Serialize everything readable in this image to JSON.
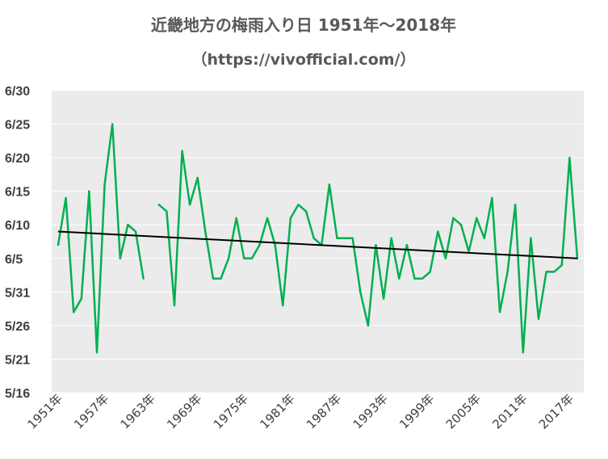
{
  "chart_data": {
    "type": "line",
    "title": "近畿地方の梅雨入り日 1951年～2018年",
    "subtitle": "（https://vivofficial.com/）",
    "xlabel": "",
    "ylabel": "",
    "y_unit": "day of year (Jan 1 = 1); tick labels shown as M/D",
    "yticks": [
      {
        "value": 136,
        "label": "5/16"
      },
      {
        "value": 141,
        "label": "5/21"
      },
      {
        "value": 146,
        "label": "5/26"
      },
      {
        "value": 151,
        "label": "5/31"
      },
      {
        "value": 156,
        "label": "6/5"
      },
      {
        "value": 161,
        "label": "6/10"
      },
      {
        "value": 166,
        "label": "6/15"
      },
      {
        "value": 171,
        "label": "6/20"
      },
      {
        "value": 176,
        "label": "6/25"
      },
      {
        "value": 181,
        "label": "6/30"
      }
    ],
    "ylim": [
      136,
      181
    ],
    "xlim": [
      1951,
      2018
    ],
    "xticks": [
      {
        "value": 1951,
        "label": "1951年"
      },
      {
        "value": 1957,
        "label": "1957年"
      },
      {
        "value": 1963,
        "label": "1963年"
      },
      {
        "value": 1969,
        "label": "1969年"
      },
      {
        "value": 1975,
        "label": "1975年"
      },
      {
        "value": 1981,
        "label": "1981年"
      },
      {
        "value": 1987,
        "label": "1987年"
      },
      {
        "value": 1993,
        "label": "1993年"
      },
      {
        "value": 1999,
        "label": "1999年"
      },
      {
        "value": 2005,
        "label": "2005年"
      },
      {
        "value": 2011,
        "label": "2011年"
      },
      {
        "value": 2017,
        "label": "2017年"
      }
    ],
    "grid": "horizontal",
    "series": [
      {
        "color": "#00b050",
        "x": [
          1951,
          1952,
          1953,
          1954,
          1955,
          1956,
          1957,
          1958,
          1959,
          1960,
          1961,
          1962,
          1963,
          1964,
          1965,
          1966,
          1967,
          1968,
          1969,
          1970,
          1971,
          1972,
          1973,
          1974,
          1975,
          1976,
          1977,
          1978,
          1979,
          1980,
          1981,
          1982,
          1983,
          1984,
          1985,
          1986,
          1987,
          1988,
          1989,
          1990,
          1991,
          1992,
          1993,
          1994,
          1995,
          1996,
          1997,
          1998,
          1999,
          2000,
          2001,
          2002,
          2003,
          2004,
          2005,
          2006,
          2007,
          2008,
          2009,
          2010,
          2011,
          2012,
          2013,
          2014,
          2015,
          2016,
          2017,
          2018
        ],
        "values": [
          158,
          165,
          148,
          150,
          166,
          142,
          167,
          176,
          156,
          161,
          160,
          153,
          null,
          164,
          163,
          149,
          172,
          164,
          168,
          160,
          153,
          153,
          156,
          162,
          156,
          156,
          158,
          162,
          158,
          149,
          162,
          164,
          163,
          159,
          158,
          167,
          159,
          159,
          159,
          151,
          146,
          158,
          150,
          159,
          153,
          158,
          153,
          153,
          154,
          160,
          156,
          162,
          161,
          157,
          162,
          159,
          165,
          148,
          154,
          164,
          142,
          159,
          147,
          154,
          154,
          155,
          171,
          156
        ]
      },
      {
        "color": "#000000",
        "kind": "trendline",
        "x": [
          1951,
          2018
        ],
        "values": [
          160.0,
          156.0
        ]
      }
    ]
  }
}
